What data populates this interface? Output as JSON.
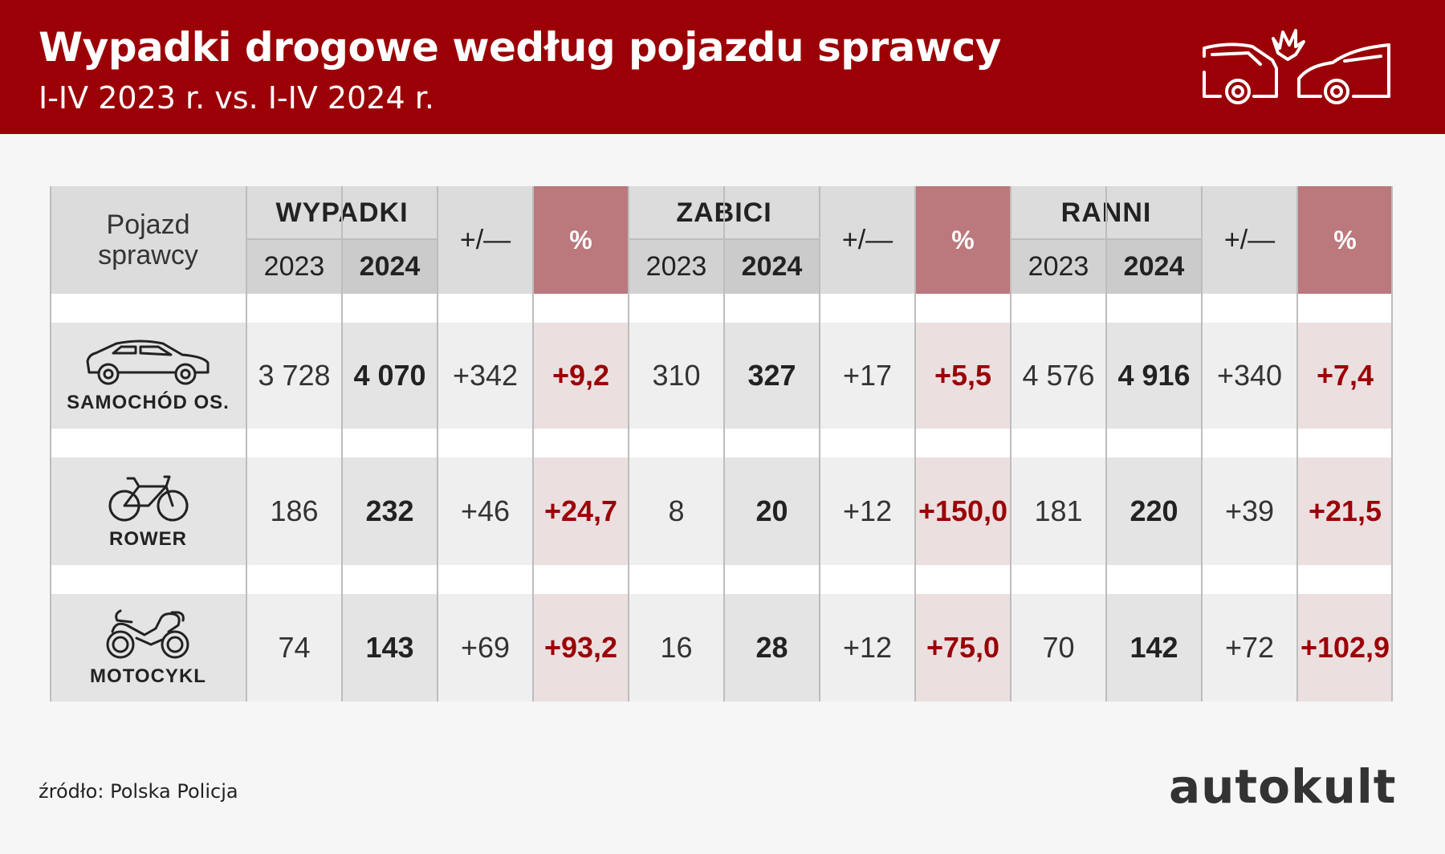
{
  "header": {
    "title": "Wypadki drogowe według pojazdu sprawcy",
    "subtitle": "I-IV 2023 r. vs. I-IV 2024 r.",
    "icon": "car-crash-icon"
  },
  "table": {
    "corner_label_line1": "Pojazd",
    "corner_label_line2": "sprawcy",
    "groups": [
      {
        "label": "WYPADKI",
        "year_a": "2023",
        "year_b": "2024",
        "diff_label": "+/—",
        "pct_label": "%"
      },
      {
        "label": "ZABICI",
        "year_a": "2023",
        "year_b": "2024",
        "diff_label": "+/—",
        "pct_label": "%"
      },
      {
        "label": "RANNI",
        "year_a": "2023",
        "year_b": "2024",
        "diff_label": "+/—",
        "pct_label": "%"
      }
    ],
    "rows": [
      {
        "vehicle": "SAMOCHÓD OS.",
        "icon": "car-icon",
        "values": [
          [
            "3 728",
            "4 070",
            "+342",
            "+9,2"
          ],
          [
            "310",
            "327",
            "+17",
            "+5,5"
          ],
          [
            "4 576",
            "4 916",
            "+340",
            "+7,4"
          ]
        ]
      },
      {
        "vehicle": "ROWER",
        "icon": "bicycle-icon",
        "values": [
          [
            "186",
            "232",
            "+46",
            "+24,7"
          ],
          [
            "8",
            "20",
            "+12",
            "+150,0"
          ],
          [
            "181",
            "220",
            "+39",
            "+21,5"
          ]
        ]
      },
      {
        "vehicle": "MOTOCYKL",
        "icon": "motorcycle-icon",
        "values": [
          [
            "74",
            "143",
            "+69",
            "+93,2"
          ],
          [
            "16",
            "28",
            "+12",
            "+75,0"
          ],
          [
            "70",
            "142",
            "+72",
            "+102,9"
          ]
        ]
      }
    ]
  },
  "footer": {
    "source": "źródło: Polska Policja",
    "brand": "autokult"
  },
  "colors": {
    "brand_red": "#9b0006",
    "pct_header": "#bb787d",
    "pct_cell": "#ecdfe0"
  }
}
